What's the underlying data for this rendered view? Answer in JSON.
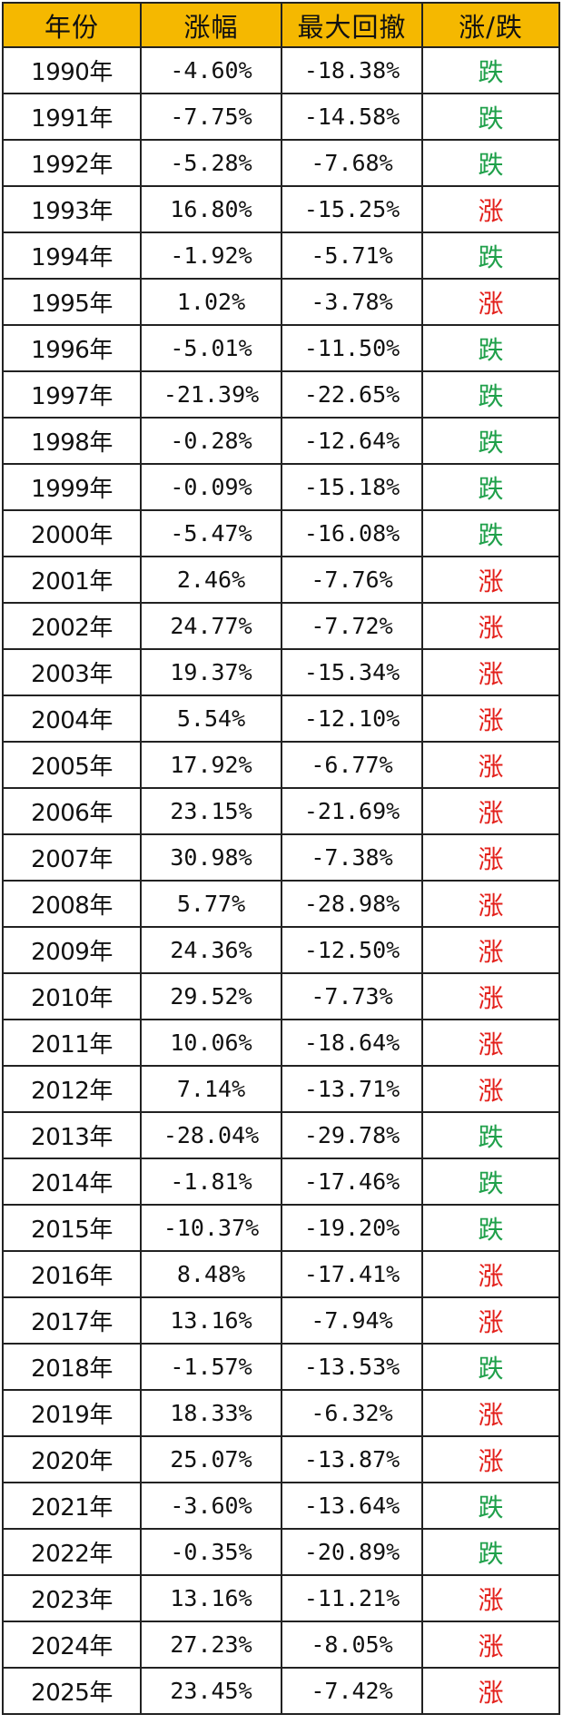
{
  "colors": {
    "header_bg": "#f5b800",
    "up": "#e3201b",
    "down": "#1fa04a"
  },
  "header": {
    "year": "年份",
    "change": "涨幅",
    "drawdown": "最大回撤",
    "direction": "涨/跌"
  },
  "rows": [
    {
      "year": "1990年",
      "change": "-4.60%",
      "drawdown": "-18.38%",
      "direction": "跌",
      "up": false
    },
    {
      "year": "1991年",
      "change": "-7.75%",
      "drawdown": "-14.58%",
      "direction": "跌",
      "up": false
    },
    {
      "year": "1992年",
      "change": "-5.28%",
      "drawdown": "-7.68%",
      "direction": "跌",
      "up": false
    },
    {
      "year": "1993年",
      "change": "16.80%",
      "drawdown": "-15.25%",
      "direction": "涨",
      "up": true
    },
    {
      "year": "1994年",
      "change": "-1.92%",
      "drawdown": "-5.71%",
      "direction": "跌",
      "up": false
    },
    {
      "year": "1995年",
      "change": "1.02%",
      "drawdown": "-3.78%",
      "direction": "涨",
      "up": true
    },
    {
      "year": "1996年",
      "change": "-5.01%",
      "drawdown": "-11.50%",
      "direction": "跌",
      "up": false
    },
    {
      "year": "1997年",
      "change": "-21.39%",
      "drawdown": "-22.65%",
      "direction": "跌",
      "up": false
    },
    {
      "year": "1998年",
      "change": "-0.28%",
      "drawdown": "-12.64%",
      "direction": "跌",
      "up": false
    },
    {
      "year": "1999年",
      "change": "-0.09%",
      "drawdown": "-15.18%",
      "direction": "跌",
      "up": false
    },
    {
      "year": "2000年",
      "change": "-5.47%",
      "drawdown": "-16.08%",
      "direction": "跌",
      "up": false
    },
    {
      "year": "2001年",
      "change": "2.46%",
      "drawdown": "-7.76%",
      "direction": "涨",
      "up": true
    },
    {
      "year": "2002年",
      "change": "24.77%",
      "drawdown": "-7.72%",
      "direction": "涨",
      "up": true
    },
    {
      "year": "2003年",
      "change": "19.37%",
      "drawdown": "-15.34%",
      "direction": "涨",
      "up": true
    },
    {
      "year": "2004年",
      "change": "5.54%",
      "drawdown": "-12.10%",
      "direction": "涨",
      "up": true
    },
    {
      "year": "2005年",
      "change": "17.92%",
      "drawdown": "-6.77%",
      "direction": "涨",
      "up": true
    },
    {
      "year": "2006年",
      "change": "23.15%",
      "drawdown": "-21.69%",
      "direction": "涨",
      "up": true
    },
    {
      "year": "2007年",
      "change": "30.98%",
      "drawdown": "-7.38%",
      "direction": "涨",
      "up": true
    },
    {
      "year": "2008年",
      "change": "5.77%",
      "drawdown": "-28.98%",
      "direction": "涨",
      "up": true
    },
    {
      "year": "2009年",
      "change": "24.36%",
      "drawdown": "-12.50%",
      "direction": "涨",
      "up": true
    },
    {
      "year": "2010年",
      "change": "29.52%",
      "drawdown": "-7.73%",
      "direction": "涨",
      "up": true
    },
    {
      "year": "2011年",
      "change": "10.06%",
      "drawdown": "-18.64%",
      "direction": "涨",
      "up": true
    },
    {
      "year": "2012年",
      "change": "7.14%",
      "drawdown": "-13.71%",
      "direction": "涨",
      "up": true
    },
    {
      "year": "2013年",
      "change": "-28.04%",
      "drawdown": "-29.78%",
      "direction": "跌",
      "up": false
    },
    {
      "year": "2014年",
      "change": "-1.81%",
      "drawdown": "-17.46%",
      "direction": "跌",
      "up": false
    },
    {
      "year": "2015年",
      "change": "-10.37%",
      "drawdown": "-19.20%",
      "direction": "跌",
      "up": false
    },
    {
      "year": "2016年",
      "change": "8.48%",
      "drawdown": "-17.41%",
      "direction": "涨",
      "up": true
    },
    {
      "year": "2017年",
      "change": "13.16%",
      "drawdown": "-7.94%",
      "direction": "涨",
      "up": true
    },
    {
      "year": "2018年",
      "change": "-1.57%",
      "drawdown": "-13.53%",
      "direction": "跌",
      "up": false
    },
    {
      "year": "2019年",
      "change": "18.33%",
      "drawdown": "-6.32%",
      "direction": "涨",
      "up": true
    },
    {
      "year": "2020年",
      "change": "25.07%",
      "drawdown": "-13.87%",
      "direction": "涨",
      "up": true
    },
    {
      "year": "2021年",
      "change": "-3.60%",
      "drawdown": "-13.64%",
      "direction": "跌",
      "up": false
    },
    {
      "year": "2022年",
      "change": "-0.35%",
      "drawdown": "-20.89%",
      "direction": "跌",
      "up": false
    },
    {
      "year": "2023年",
      "change": "13.16%",
      "drawdown": "-11.21%",
      "direction": "涨",
      "up": true
    },
    {
      "year": "2024年",
      "change": "27.23%",
      "drawdown": "-8.05%",
      "direction": "涨",
      "up": true
    },
    {
      "year": "2025年",
      "change": "23.45%",
      "drawdown": "-7.42%",
      "direction": "涨",
      "up": true
    }
  ]
}
